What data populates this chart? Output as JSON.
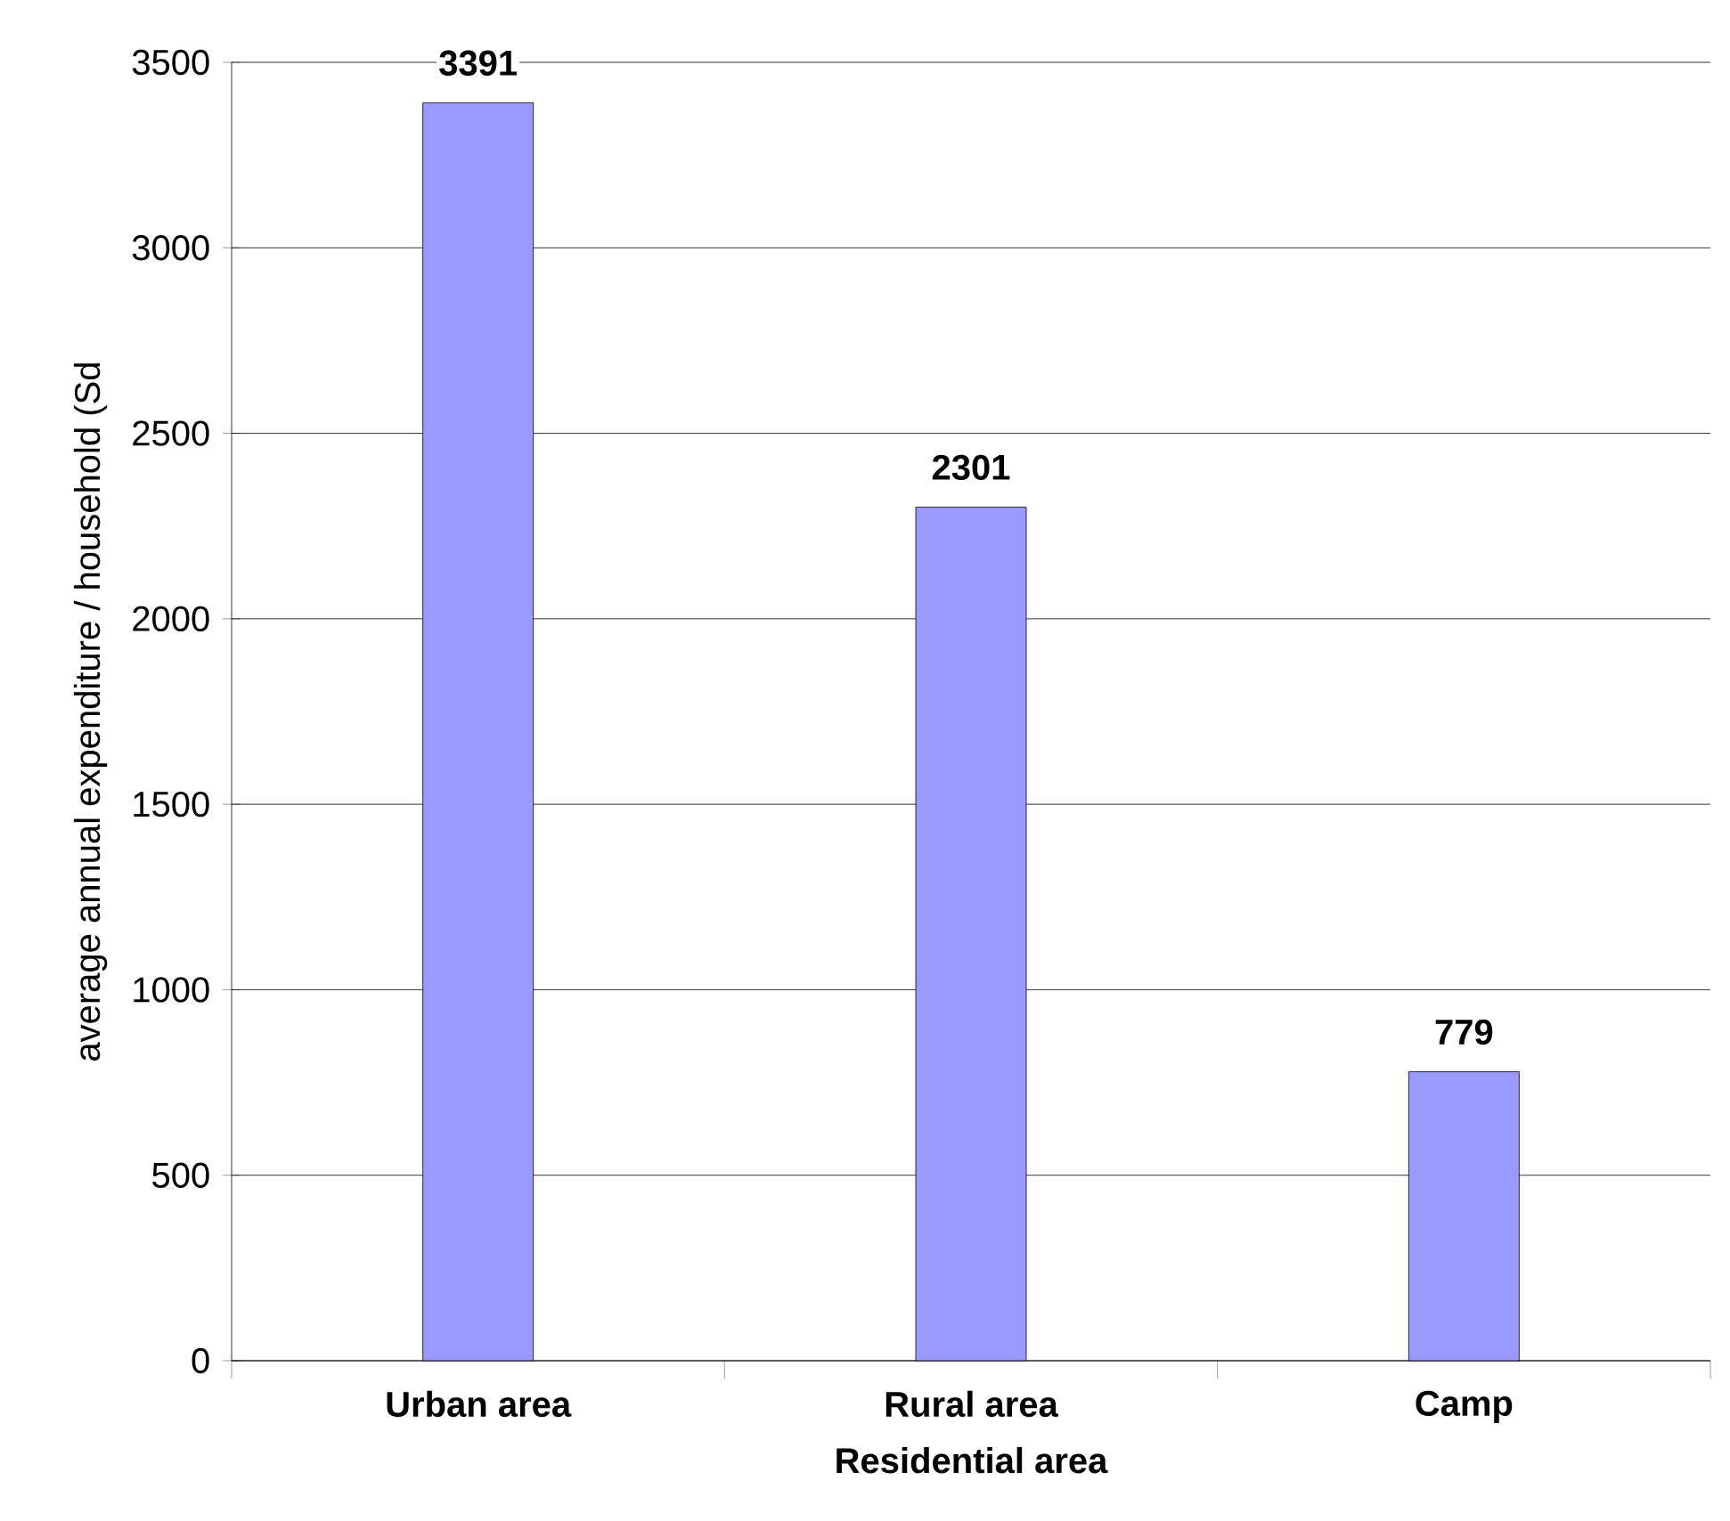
{
  "chart_data": {
    "type": "bar",
    "xlabel": "Residential area",
    "ylabel": "average annual expenditure / household (Sd",
    "categories": [
      "Urban area",
      "Rural area",
      "Camp"
    ],
    "values": [
      3391,
      2301,
      779
    ],
    "color": "#9999ff",
    "ylim": [
      0,
      3500
    ],
    "yticks": [
      0,
      500,
      1000,
      1500,
      2000,
      2500,
      3000,
      3500
    ],
    "grid": "y",
    "data_labels": true
  }
}
